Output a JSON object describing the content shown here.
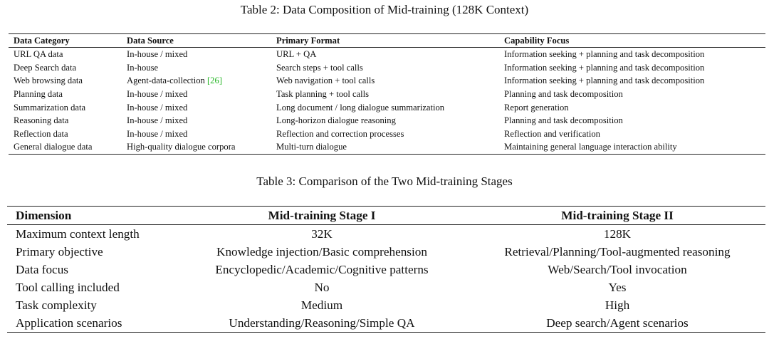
{
  "table2": {
    "caption": "Table 2: Data Composition of Mid-training (128K Context)",
    "header": [
      "Data Category",
      "Data Source",
      "Primary Format",
      "Capability Focus"
    ],
    "rows": [
      [
        "URL QA data",
        "In-house / mixed",
        "URL + QA",
        "Information seeking + planning and task decomposition"
      ],
      [
        "Deep Search data",
        "In-house",
        "Search steps + tool calls",
        "Information seeking + planning and task decomposition"
      ],
      [
        "Web browsing data",
        {
          "text": "Agent-data-collection",
          "cite": "[26]"
        },
        "Web navigation + tool calls",
        "Information seeking + planning and task decomposition"
      ],
      [
        "Planning data",
        "In-house / mixed",
        "Task planning + tool calls",
        "Planning and task decomposition"
      ],
      [
        "Summarization data",
        "In-house / mixed",
        "Long document / long dialogue summarization",
        "Report generation"
      ],
      [
        "Reasoning data",
        "In-house / mixed",
        "Long-horizon dialogue reasoning",
        "Planning and task decomposition"
      ],
      [
        "Reflection data",
        "In-house / mixed",
        "Reflection and correction processes",
        "Reflection and verification"
      ],
      [
        "General dialogue data",
        "High-quality dialogue corpora",
        "Multi-turn dialogue",
        "Maintaining general language interaction ability"
      ]
    ]
  },
  "table3": {
    "caption": "Table 3: Comparison of the Two Mid-training Stages",
    "header": [
      "Dimension",
      "Mid-training Stage I",
      "Mid-training Stage II"
    ],
    "rows": [
      [
        "Maximum context length",
        "32K",
        "128K"
      ],
      [
        "Primary objective",
        "Knowledge injection/Basic comprehension",
        "Retrieval/Planning/Tool-augmented reasoning"
      ],
      [
        "Data focus",
        "Encyclopedic/Academic/Cognitive patterns",
        "Web/Search/Tool invocation"
      ],
      [
        "Tool calling included",
        "No",
        "Yes"
      ],
      [
        "Task complexity",
        "Medium",
        "High"
      ],
      [
        "Application scenarios",
        "Understanding/Reasoning/Simple QA",
        "Deep search/Agent scenarios"
      ]
    ]
  }
}
